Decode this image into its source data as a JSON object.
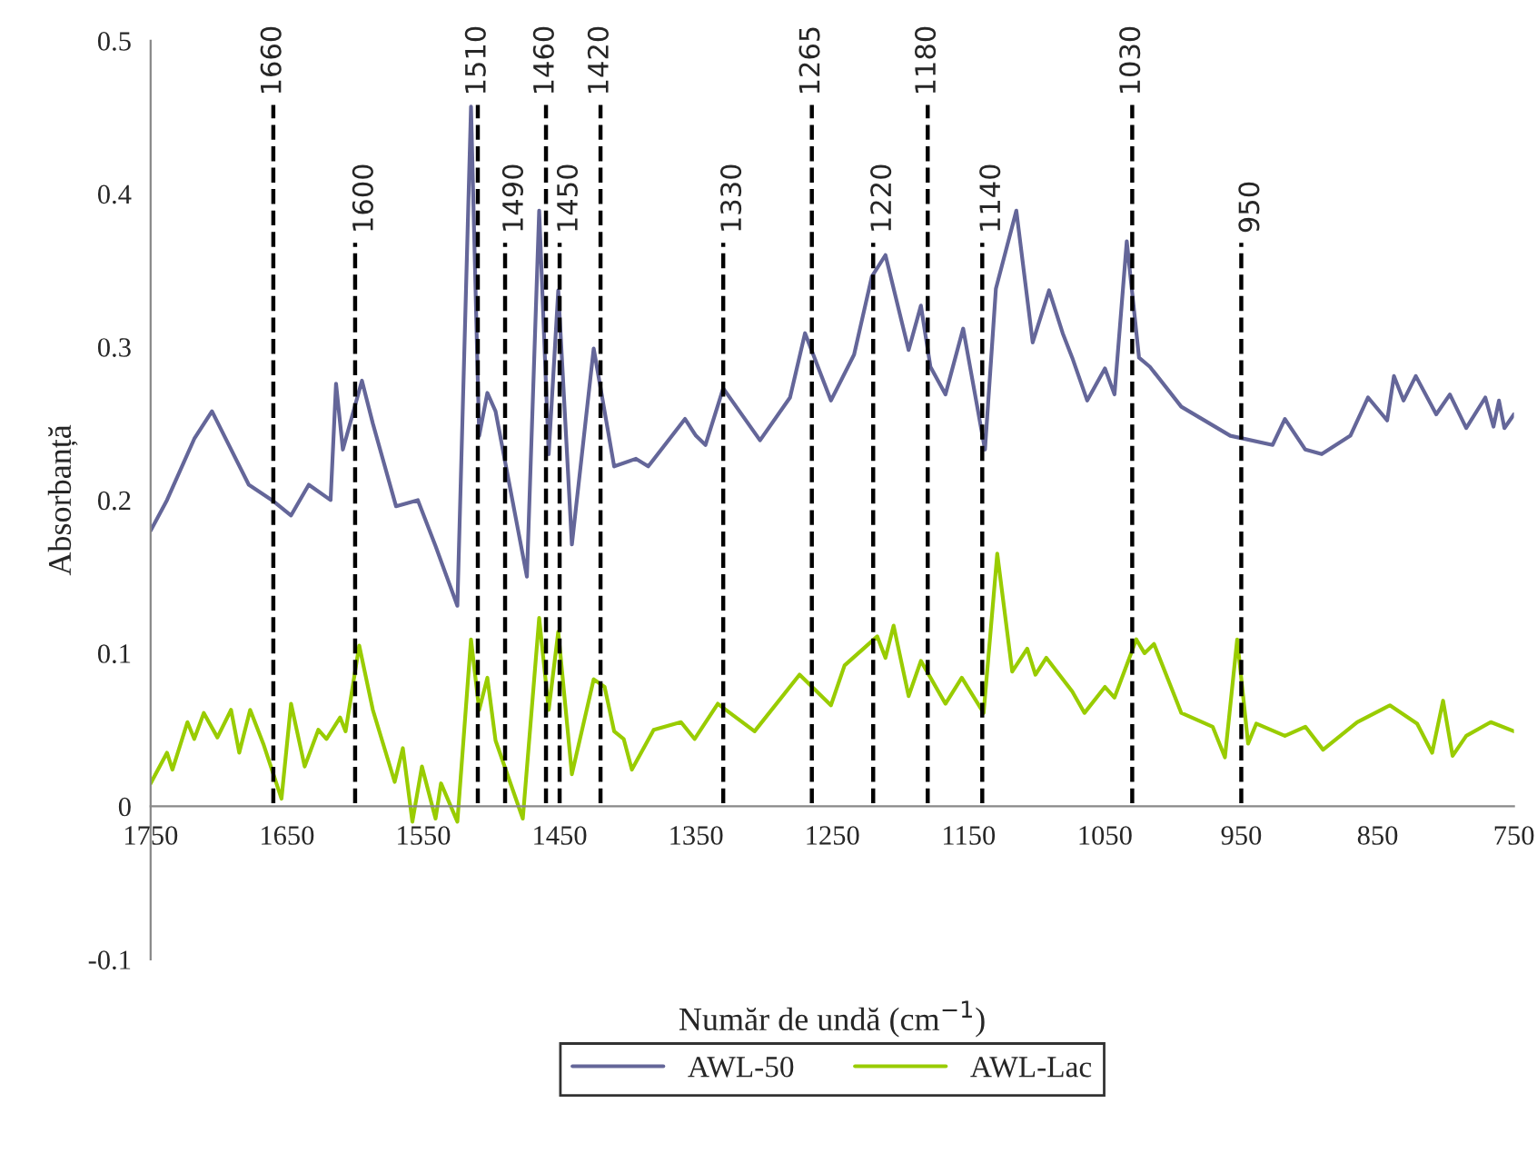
{
  "chart_data": {
    "type": "line",
    "xlabel": "Număr de undă (cm$^{−1}$)",
    "ylabel": "Absorbanță",
    "xlim": [
      1750,
      750
    ],
    "xticks": [
      1750,
      1650,
      1550,
      1450,
      1350,
      1250,
      1150,
      1050,
      950,
      850,
      750
    ],
    "ylim": [
      -0.1,
      0.5
    ],
    "yticks": [
      -0.1,
      0,
      0.1,
      0.2,
      0.3,
      0.4,
      0.5
    ],
    "grid": false,
    "legend": "bottom",
    "line_style": "solid",
    "series": [
      {
        "name": "AWL-50",
        "color": "#646699",
        "x": [
          1750,
          1738,
          1718,
          1705,
          1678,
          1661,
          1647,
          1634,
          1618,
          1614,
          1609,
          1595,
          1587,
          1570,
          1554,
          1541,
          1525,
          1515,
          1509,
          1503,
          1497,
          1474,
          1465,
          1458,
          1451,
          1441,
          1425,
          1410,
          1394,
          1385,
          1358,
          1350,
          1343,
          1330,
          1303,
          1281,
          1270,
          1251,
          1234,
          1221,
          1211,
          1194,
          1185,
          1178,
          1167,
          1154,
          1138,
          1130,
          1115,
          1103,
          1091,
          1081,
          1074,
          1063,
          1050,
          1043,
          1034,
          1025,
          1017,
          994,
          958,
          927,
          918,
          903,
          891,
          870,
          857,
          843,
          838,
          831,
          822,
          807,
          797,
          785,
          771,
          765,
          761,
          757,
          750
        ],
        "values": [
          0.18,
          0.2,
          0.24,
          0.258,
          0.21,
          0.2,
          0.19,
          0.21,
          0.2,
          0.276,
          0.233,
          0.278,
          0.25,
          0.196,
          0.2,
          0.17,
          0.131,
          0.457,
          0.242,
          0.27,
          0.258,
          0.15,
          0.389,
          0.23,
          0.337,
          0.171,
          0.299,
          0.222,
          0.227,
          0.222,
          0.253,
          0.242,
          0.236,
          0.273,
          0.239,
          0.267,
          0.309,
          0.265,
          0.295,
          0.346,
          0.36,
          0.298,
          0.327,
          0.287,
          0.269,
          0.312,
          0.233,
          0.338,
          0.389,
          0.303,
          0.337,
          0.309,
          0.293,
          0.265,
          0.286,
          0.269,
          0.369,
          0.293,
          0.287,
          0.261,
          0.242,
          0.236,
          0.253,
          0.233,
          0.23,
          0.242,
          0.267,
          0.252,
          0.281,
          0.265,
          0.281,
          0.256,
          0.269,
          0.247,
          0.267,
          0.248,
          0.265,
          0.247,
          0.256
        ]
      },
      {
        "name": "AWL-Lac",
        "color": "#99cc00",
        "x": [
          1750,
          1738,
          1734,
          1723,
          1718,
          1711,
          1701,
          1691,
          1685,
          1677,
          1667,
          1654,
          1647,
          1637,
          1627,
          1621,
          1611,
          1607,
          1597,
          1587,
          1571,
          1565,
          1558,
          1551,
          1541,
          1537,
          1525,
          1515,
          1509,
          1503,
          1497,
          1477,
          1465,
          1458,
          1451,
          1441,
          1425,
          1417,
          1410,
          1403,
          1397,
          1381,
          1361,
          1351,
          1334,
          1307,
          1274,
          1251,
          1241,
          1217,
          1211,
          1205,
          1194,
          1185,
          1167,
          1155,
          1139,
          1129,
          1118,
          1107,
          1101,
          1093,
          1074,
          1065,
          1050,
          1043,
          1027,
          1021,
          1014,
          994,
          971,
          962,
          953,
          945,
          939,
          918,
          903,
          890,
          865,
          841,
          821,
          810,
          802,
          795,
          785,
          767,
          750
        ],
        "values": [
          0.015,
          0.035,
          0.024,
          0.055,
          0.044,
          0.061,
          0.045,
          0.063,
          0.035,
          0.063,
          0.04,
          0.005,
          0.067,
          0.026,
          0.05,
          0.044,
          0.058,
          0.049,
          0.105,
          0.063,
          0.016,
          0.038,
          -0.01,
          0.026,
          -0.008,
          0.015,
          -0.01,
          0.109,
          0.063,
          0.084,
          0.043,
          -0.008,
          0.123,
          0.063,
          0.114,
          0.021,
          0.083,
          0.078,
          0.049,
          0.044,
          0.024,
          0.05,
          0.055,
          0.044,
          0.067,
          0.049,
          0.086,
          0.066,
          0.092,
          0.111,
          0.097,
          0.118,
          0.072,
          0.095,
          0.067,
          0.084,
          0.061,
          0.165,
          0.088,
          0.103,
          0.086,
          0.097,
          0.075,
          0.061,
          0.078,
          0.071,
          0.109,
          0.1,
          0.106,
          0.061,
          0.052,
          0.032,
          0.109,
          0.041,
          0.054,
          0.046,
          0.052,
          0.037,
          0.055,
          0.066,
          0.054,
          0.035,
          0.069,
          0.033,
          0.046,
          0.055,
          0.049
        ]
      }
    ],
    "ref_lines": [
      {
        "axis": "x",
        "value": 1660,
        "label": "1660",
        "color": "#000000",
        "line_style": "dashed"
      },
      {
        "axis": "x",
        "value": 1600,
        "label": "1600",
        "color": "#000000",
        "line_style": "dashed"
      },
      {
        "axis": "x",
        "value": 1510,
        "label": "1510",
        "color": "#000000",
        "line_style": "dashed"
      },
      {
        "axis": "x",
        "value": 1490,
        "label": "1490",
        "color": "#000000",
        "line_style": "dashed"
      },
      {
        "axis": "x",
        "value": 1460,
        "label": "1460",
        "color": "#000000",
        "line_style": "dashed"
      },
      {
        "axis": "x",
        "value": 1450,
        "label": "1450",
        "color": "#000000",
        "line_style": "dashed"
      },
      {
        "axis": "x",
        "value": 1420,
        "label": "1420",
        "color": "#000000",
        "line_style": "dashed"
      },
      {
        "axis": "x",
        "value": 1330,
        "label": "1330",
        "color": "#000000",
        "line_style": "dashed"
      },
      {
        "axis": "x",
        "value": 1265,
        "label": "1265",
        "color": "#000000",
        "line_style": "dashed"
      },
      {
        "axis": "x",
        "value": 1220,
        "label": "1220",
        "color": "#000000",
        "line_style": "dashed"
      },
      {
        "axis": "x",
        "value": 1180,
        "label": "1180",
        "color": "#000000",
        "line_style": "dashed"
      },
      {
        "axis": "x",
        "value": 1140,
        "label": "1140",
        "color": "#000000",
        "line_style": "dashed"
      },
      {
        "axis": "x",
        "value": 1030,
        "label": "1030",
        "color": "#000000",
        "line_style": "dashed"
      },
      {
        "axis": "x",
        "value": 950,
        "label": "950",
        "color": "#000000",
        "line_style": "dashed"
      }
    ]
  }
}
